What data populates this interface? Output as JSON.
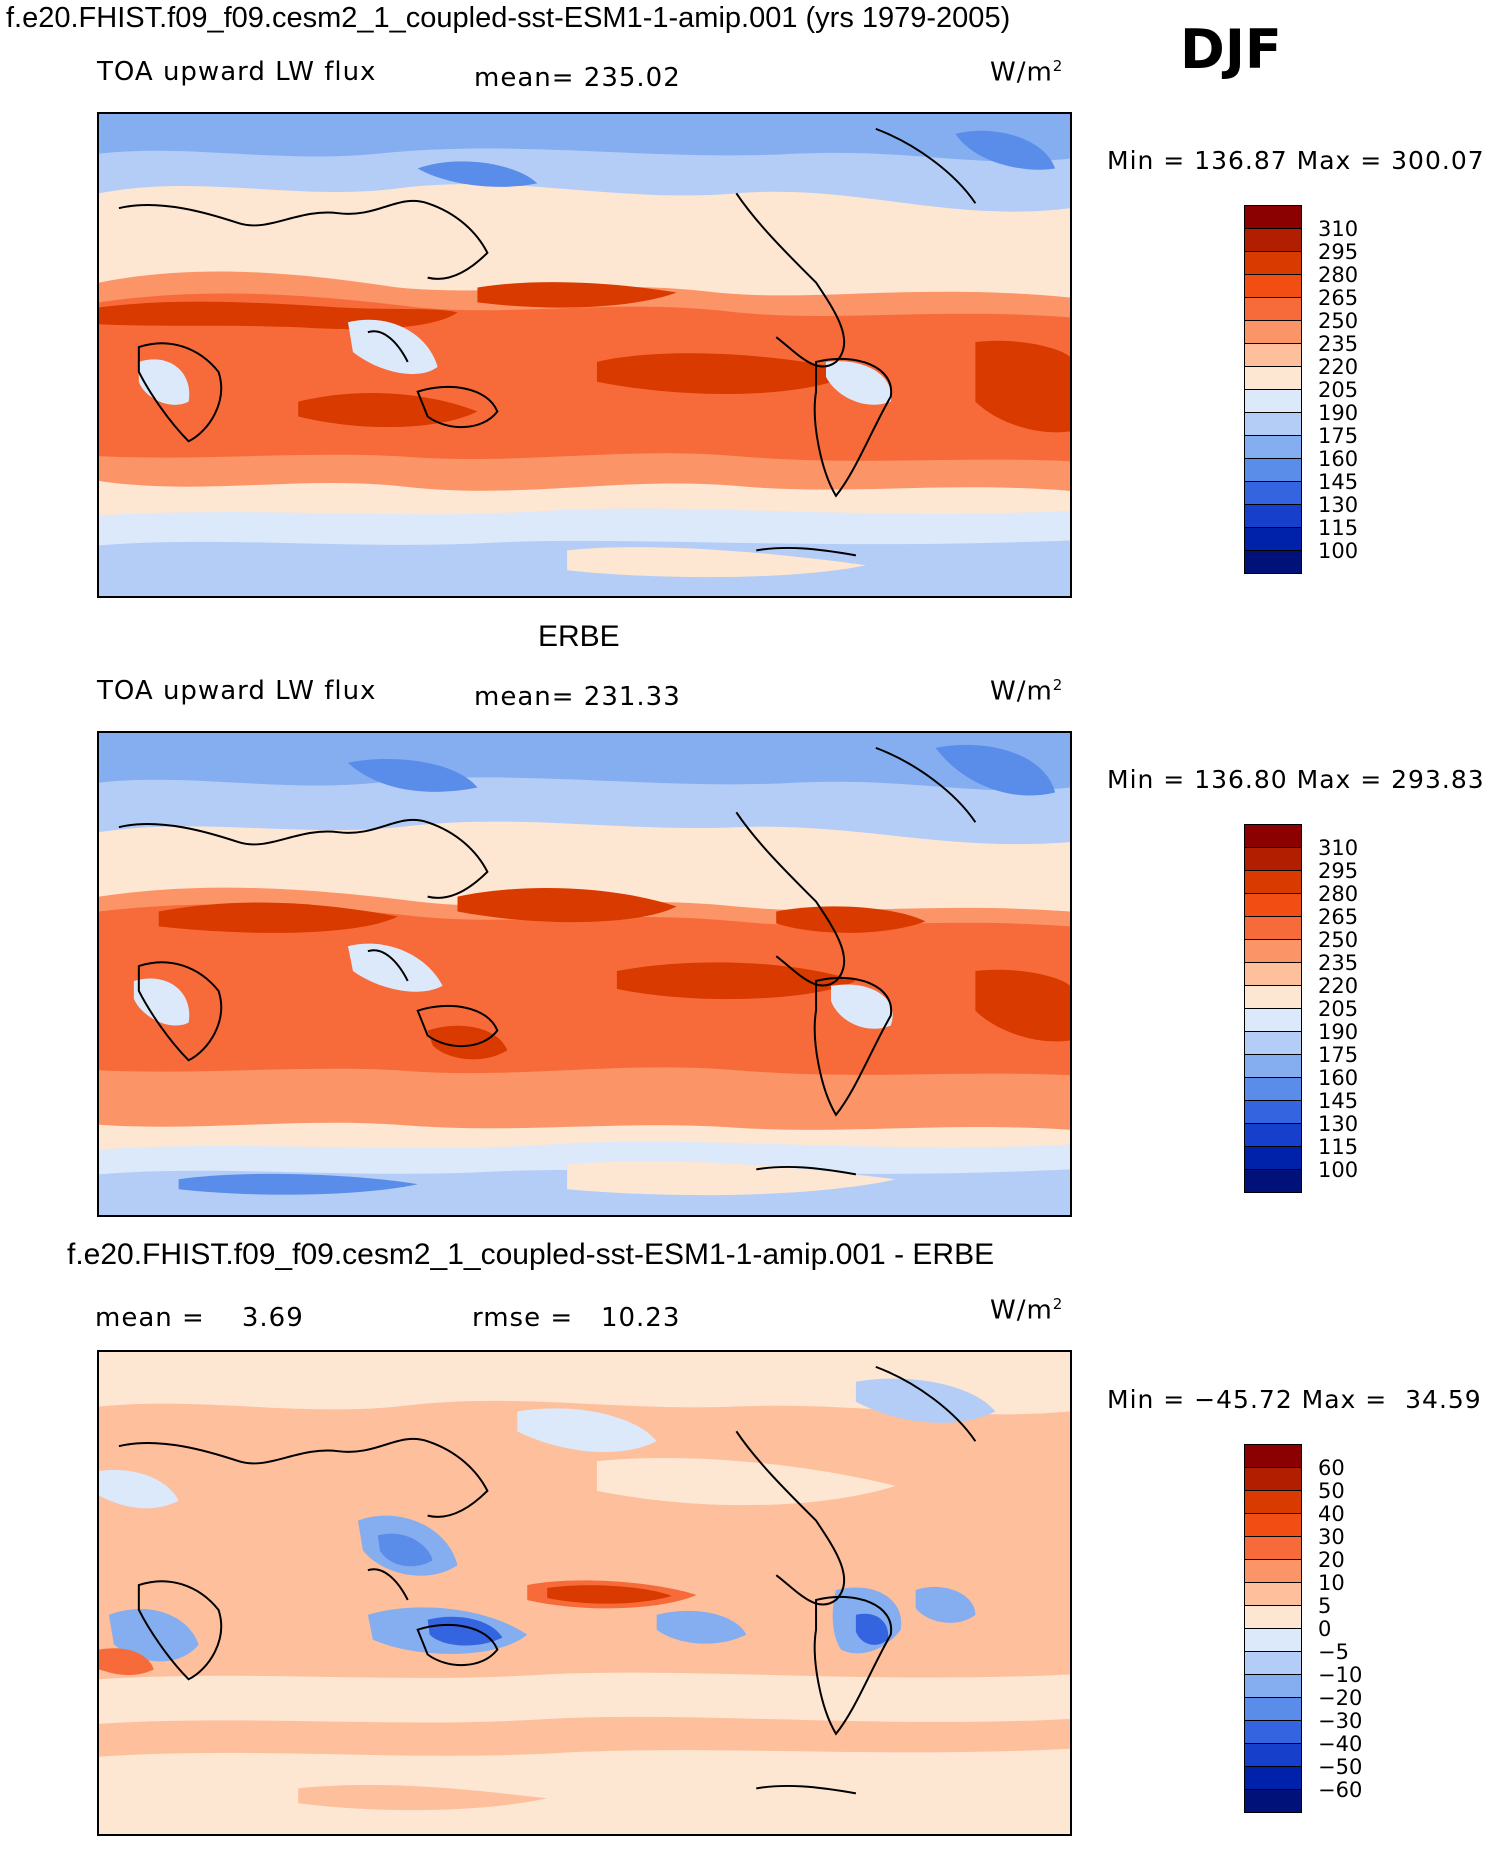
{
  "header": {
    "main_title": "f.e20.FHIST.f09_f09.cesm2_1_coupled-sst-ESM1-1-amip.001 (yrs 1979-2005)",
    "season": "DJF"
  },
  "panels": [
    {
      "id": "model",
      "panel_title": "",
      "left_label": "TOA upward LW flux",
      "center_label": "mean= 235.02",
      "units_base": "W/m",
      "units_exp": "2",
      "minmax": "Min = 136.87 Max = 300.07",
      "colorbar_levels": [
        "310",
        "295",
        "280",
        "265",
        "250",
        "235",
        "220",
        "205",
        "190",
        "175",
        "160",
        "145",
        "130",
        "115",
        "100"
      ],
      "colorbar_colors": [
        "#8b0000",
        "#b21f00",
        "#d93a00",
        "#f24e14",
        "#f76b3a",
        "#fb9467",
        "#fdbf9c",
        "#fde6d2",
        "#dbe9fa",
        "#b3cdf6",
        "#84aef0",
        "#5a8de9",
        "#3564e0",
        "#1640cc",
        "#0022aa",
        "#00127a"
      ]
    },
    {
      "id": "obs",
      "panel_title": "ERBE",
      "left_label": "TOA upward LW flux",
      "center_label": "mean= 231.33",
      "units_base": "W/m",
      "units_exp": "2",
      "minmax": "Min = 136.80 Max = 293.83",
      "colorbar_levels": [
        "310",
        "295",
        "280",
        "265",
        "250",
        "235",
        "220",
        "205",
        "190",
        "175",
        "160",
        "145",
        "130",
        "115",
        "100"
      ],
      "colorbar_colors": [
        "#8b0000",
        "#b21f00",
        "#d93a00",
        "#f24e14",
        "#f76b3a",
        "#fb9467",
        "#fdbf9c",
        "#fde6d2",
        "#dbe9fa",
        "#b3cdf6",
        "#84aef0",
        "#5a8de9",
        "#3564e0",
        "#1640cc",
        "#0022aa",
        "#00127a"
      ]
    },
    {
      "id": "diff",
      "panel_title": "f.e20.FHIST.f09_f09.cesm2_1_coupled-sst-ESM1-1-amip.001 - ERBE",
      "left_label": "mean =    3.69",
      "center_label": "rmse =   10.23",
      "units_base": "W/m",
      "units_exp": "2",
      "minmax": "Min = −45.72 Max =  34.59",
      "colorbar_levels": [
        "60",
        "50",
        "40",
        "30",
        "20",
        "10",
        "5",
        "0",
        "−5",
        "−10",
        "−20",
        "−30",
        "−40",
        "−50",
        "−60"
      ],
      "colorbar_colors": [
        "#8b0000",
        "#b21f00",
        "#d93a00",
        "#f24e14",
        "#f76b3a",
        "#fb9467",
        "#fdbf9c",
        "#fde6d2",
        "#dbe9fa",
        "#b3cdf6",
        "#84aef0",
        "#5a8de9",
        "#3564e0",
        "#1640cc",
        "#0022aa",
        "#00127a"
      ]
    }
  ],
  "chart_data": [
    {
      "type": "heatmap",
      "title": "f.e20.FHIST.f09_f09.cesm2_1_coupled-sst-ESM1-1-amip.001 (yrs 1979-2005) DJF",
      "variable": "TOA upward LW flux",
      "units": "W/m2",
      "mean": 235.02,
      "min": 136.87,
      "max": 300.07,
      "contour_levels": [
        100,
        115,
        130,
        145,
        160,
        175,
        190,
        205,
        220,
        235,
        250,
        265,
        280,
        295,
        310
      ]
    },
    {
      "type": "heatmap",
      "title": "ERBE",
      "variable": "TOA upward LW flux",
      "units": "W/m2",
      "mean": 231.33,
      "min": 136.8,
      "max": 293.83,
      "contour_levels": [
        100,
        115,
        130,
        145,
        160,
        175,
        190,
        205,
        220,
        235,
        250,
        265,
        280,
        295,
        310
      ]
    },
    {
      "type": "heatmap",
      "title": "f.e20.FHIST.f09_f09.cesm2_1_coupled-sst-ESM1-1-amip.001 - ERBE",
      "units": "W/m2",
      "mean": 3.69,
      "rmse": 10.23,
      "min": -45.72,
      "max": 34.59,
      "contour_levels": [
        -60,
        -50,
        -40,
        -30,
        -20,
        -10,
        -5,
        0,
        5,
        10,
        20,
        30,
        40,
        50,
        60
      ]
    }
  ]
}
